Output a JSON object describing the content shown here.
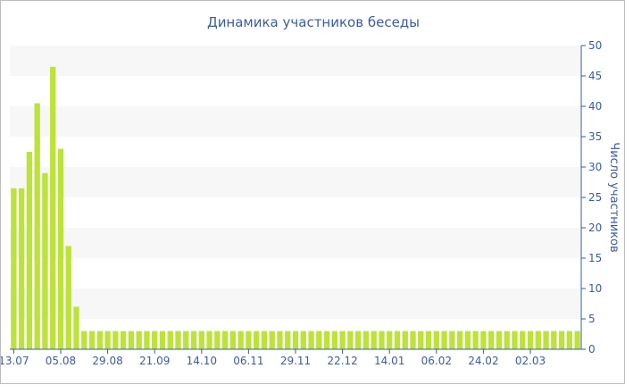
{
  "chart_data": {
    "type": "bar",
    "title": "Динамика участников беседы",
    "ylabel": "Число участников",
    "xlabel": "",
    "ylim": [
      0,
      50
    ],
    "yticks": [
      0,
      5,
      10,
      15,
      20,
      25,
      30,
      35,
      40,
      45,
      50
    ],
    "x_tick_labels": [
      "13.07",
      "05.08",
      "29.08",
      "21.09",
      "14.10",
      "06.11",
      "29.11",
      "22.12",
      "14.01",
      "06.02",
      "24.02",
      "02.03"
    ],
    "x_tick_bar_index": [
      0,
      6,
      12,
      18,
      24,
      30,
      36,
      42,
      48,
      54,
      60,
      66
    ],
    "values": [
      26.5,
      26.5,
      32.5,
      40.5,
      29,
      46.5,
      33,
      17,
      7,
      3,
      3,
      3,
      3,
      3,
      3,
      3,
      3,
      3,
      3,
      3,
      3,
      3,
      3,
      3,
      3,
      3,
      3,
      3,
      3,
      3,
      3,
      3,
      3,
      3,
      3,
      3,
      3,
      3,
      3,
      3,
      3,
      3,
      3,
      3,
      3,
      3,
      3,
      3,
      3,
      3,
      3,
      3,
      3,
      3,
      3,
      3,
      3,
      3,
      3,
      3,
      3,
      3,
      3,
      3,
      3,
      3,
      3,
      3,
      3,
      3,
      3,
      3,
      3
    ],
    "bar_color": "#bde23a",
    "band_color": "#f7f7f7",
    "grid": false,
    "legend": "none",
    "y_axis_position": "right"
  }
}
